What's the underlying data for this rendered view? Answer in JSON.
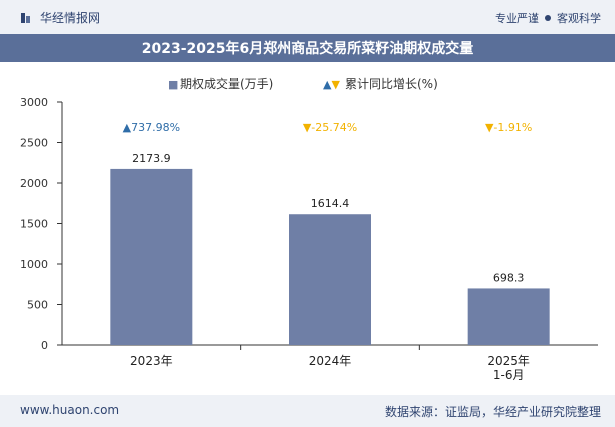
{
  "header": {
    "brand": "华经情报网",
    "tagline_left": "专业严谨",
    "tagline_right": "客观科学"
  },
  "title": "2023-2025年6月郑州商品交易所菜籽油期权成交量",
  "footer": {
    "url": "www.huaon.com",
    "source": "数据来源：证监局，华经产业研究院整理"
  },
  "colors": {
    "bar": "#6f7fa6",
    "up": "#2f6da8",
    "down": "#f2b200",
    "axis": "#333333",
    "title_bg": "#5a6f99"
  },
  "chart_data": {
    "type": "bar",
    "categories": [
      "2023年",
      "2024年",
      "2025年\n1-6月"
    ],
    "values": [
      2173.9,
      1614.4,
      698.3
    ],
    "value_labels": [
      "2173.9",
      "1614.4",
      "698.3"
    ],
    "growth": [
      {
        "text": "▲737.98%",
        "direction": "up"
      },
      {
        "text": "▼-25.74%",
        "direction": "down"
      },
      {
        "text": "▼-1.91%",
        "direction": "down"
      }
    ],
    "legend": [
      {
        "label": "期权成交量(万手)",
        "marker": "■",
        "kind": "bar"
      },
      {
        "label": "累计同比增长(%)",
        "marker": "▲▼",
        "kind": "growth"
      }
    ],
    "ylim": [
      0,
      3000
    ],
    "yticks": [
      "0",
      "500",
      "1000",
      "1500",
      "2000",
      "2500",
      "3000"
    ],
    "xlabel": "",
    "ylabel": ""
  }
}
